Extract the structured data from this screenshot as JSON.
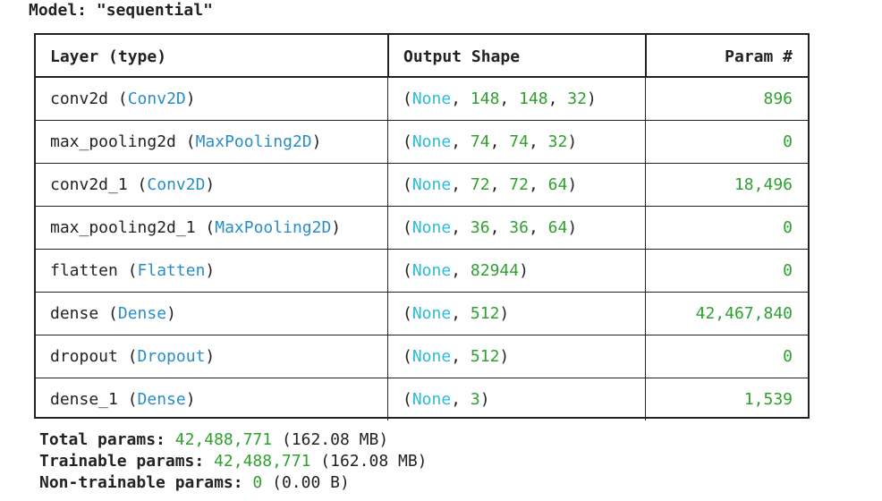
{
  "model": {
    "title": "Model: \"sequential\""
  },
  "table": {
    "headers": {
      "layer": "Layer (type)",
      "output": "Output Shape",
      "params": "Param #"
    },
    "rows": [
      {
        "name": "conv2d",
        "type": "Conv2D",
        "shape": [
          "148",
          "148",
          "32"
        ],
        "params": "896"
      },
      {
        "name": "max_pooling2d",
        "type": "MaxPooling2D",
        "shape": [
          "74",
          "74",
          "32"
        ],
        "params": "0"
      },
      {
        "name": "conv2d_1",
        "type": "Conv2D",
        "shape": [
          "72",
          "72",
          "64"
        ],
        "params": "18,496"
      },
      {
        "name": "max_pooling2d_1",
        "type": "MaxPooling2D",
        "shape": [
          "36",
          "36",
          "64"
        ],
        "params": "0"
      },
      {
        "name": "flatten",
        "type": "Flatten",
        "shape": [
          "82944"
        ],
        "params": "0"
      },
      {
        "name": "dense",
        "type": "Dense",
        "shape": [
          "512"
        ],
        "params": "42,467,840"
      },
      {
        "name": "dropout",
        "type": "Dropout",
        "shape": [
          "512"
        ],
        "params": "0"
      },
      {
        "name": "dense_1",
        "type": "Dense",
        "shape": [
          "3"
        ],
        "params": "1,539"
      }
    ],
    "none_label": "None"
  },
  "summary": {
    "total_label": "Total params:",
    "total_value": "42,488,771",
    "total_size": "(162.08 MB)",
    "trainable_label": "Trainable params:",
    "trainable_value": "42,488,771",
    "trainable_size": "(162.08 MB)",
    "non_trainable_label": "Non-trainable params:",
    "non_trainable_value": "0",
    "non_trainable_size": "(0.00 B)"
  },
  "colors": {
    "text": "#222222",
    "none_cyan": "#2bbcd4",
    "type_blue": "#2a8dc4",
    "number_green": "#2ea02e"
  }
}
